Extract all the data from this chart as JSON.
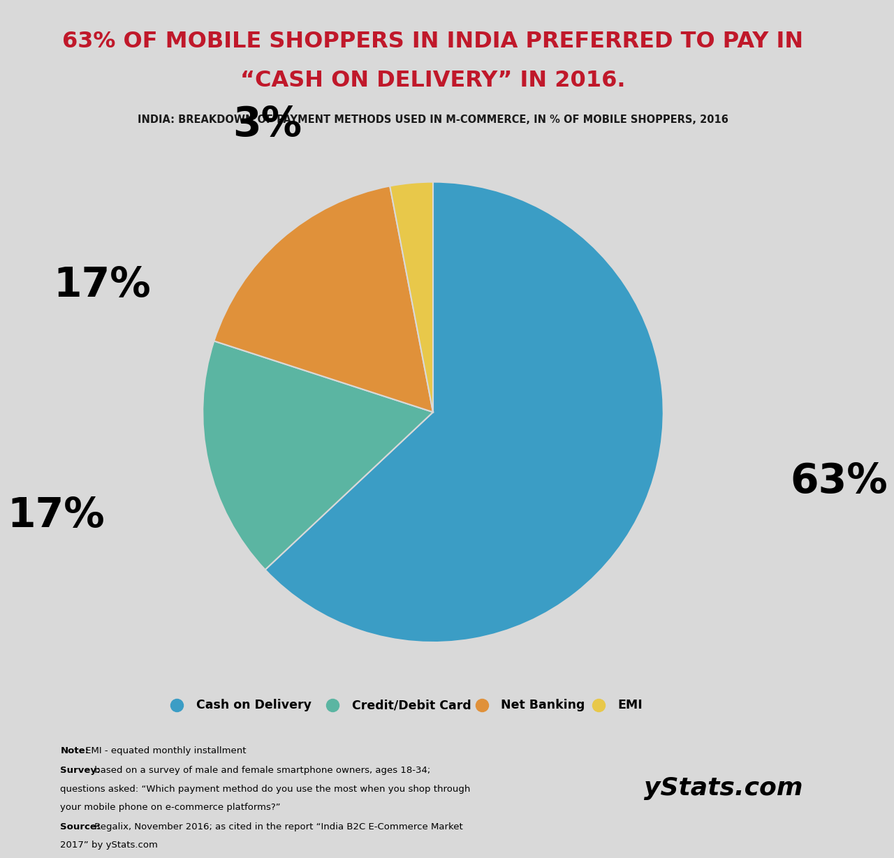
{
  "title_line1": "63% OF MOBILE SHOPPERS IN INDIA PREFERRED TO PAY IN",
  "title_line2": "“CASH ON DELIVERY” IN 2016.",
  "subtitle": "INDIA: BREAKDOWN OF PAYMENT METHODS USED IN M-COMMERCE, IN % OF MOBILE SHOPPERS, 2016",
  "slices": [
    63,
    17,
    17,
    3
  ],
  "labels": [
    "Cash on Delivery",
    "Credit/Debit Card",
    "Net Banking",
    "EMI"
  ],
  "percentages": [
    "63%",
    "17%",
    "17%",
    "3%"
  ],
  "colors": [
    "#3B9DC5",
    "#5BB5A2",
    "#E0913A",
    "#E8C84A"
  ],
  "start_angle": 90,
  "bg_color": "#D9D9D9",
  "header_bg": "#FFFFFF",
  "title_color": "#C0182A",
  "subtitle_color": "#1A1A1A",
  "label_color": "#000000",
  "legend_labels": [
    "Cash on Delivery",
    "Credit/Debit Card",
    "Net Banking",
    "EMI"
  ],
  "legend_colors": [
    "#3B9DC5",
    "#5BB5A2",
    "#E0913A",
    "#E8C84A"
  ]
}
